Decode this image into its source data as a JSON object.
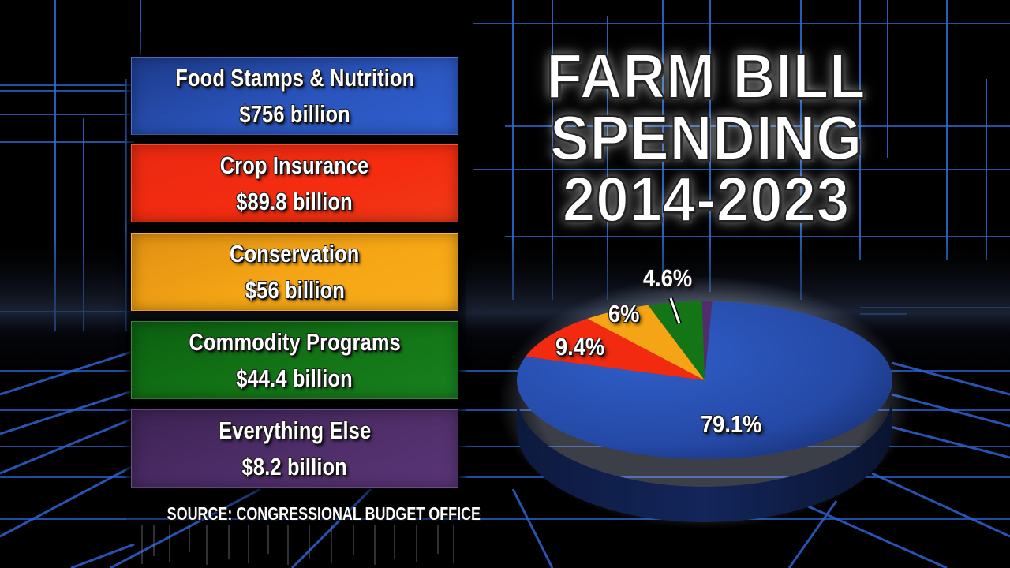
{
  "title": {
    "line1": "FARM BILL",
    "line2": "SPENDING",
    "line3": "2014-2023"
  },
  "legend": [
    {
      "label": "Food Stamps & Nutrition",
      "value": "$756 billion",
      "color": "#2a52b8"
    },
    {
      "label": "Crop Insurance",
      "value": "$89.8 billion",
      "color": "#f22a10"
    },
    {
      "label": "Conservation",
      "value": "$56 billion",
      "color": "#f4a414"
    },
    {
      "label": "Commodity Programs",
      "value": "$44.4 billion",
      "color": "#137516"
    },
    {
      "label": "Everything Else",
      "value": "$8.2 billion",
      "color": "#4f2e6a"
    }
  ],
  "pie_labels": {
    "food_stamps": "79.1%",
    "crop_insurance": "9.4%",
    "conservation": "6%",
    "commodity": "4.6%"
  },
  "source": "SOURCE: CONGRESSIONAL BUDGET OFFICE",
  "chart_data": {
    "type": "pie",
    "title": "FARM BILL SPENDING 2014-2023",
    "categories": [
      "Food Stamps & Nutrition",
      "Crop Insurance",
      "Conservation",
      "Commodity Programs",
      "Everything Else"
    ],
    "values": [
      756,
      89.8,
      56,
      44.4,
      8.2
    ],
    "units": "billion USD",
    "percent_labels": [
      "79.1%",
      "9.4%",
      "6%",
      "4.6%",
      null
    ],
    "percentages": [
      79.1,
      9.4,
      6.0,
      4.6,
      0.9
    ],
    "colors": [
      "#2a52b8",
      "#f22a10",
      "#f4a414",
      "#137516",
      "#4f2e6a"
    ],
    "source": "SOURCE: CONGRESSIONAL BUDGET OFFICE",
    "legend_position": "left",
    "style": "3d"
  }
}
